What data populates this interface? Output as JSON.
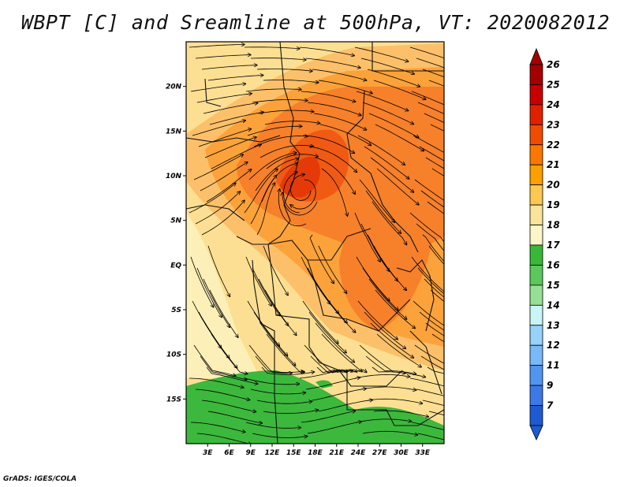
{
  "title": "WBPT [C] and Sreamline at 500hPa, VT: 2020082012",
  "footer": "GrADS: IGES/COLA",
  "map": {
    "lon_range": [
      0,
      36
    ],
    "lat_range": [
      -20,
      25
    ],
    "lat_ticks": [
      {
        "value": 20,
        "label": "20N"
      },
      {
        "value": 15,
        "label": "15N"
      },
      {
        "value": 10,
        "label": "10N"
      },
      {
        "value": 5,
        "label": "5N"
      },
      {
        "value": 0,
        "label": "EQ"
      },
      {
        "value": -5,
        "label": "5S"
      },
      {
        "value": -10,
        "label": "10S"
      },
      {
        "value": -15,
        "label": "15S"
      }
    ],
    "lon_ticks": [
      {
        "value": 3,
        "label": "3E"
      },
      {
        "value": 6,
        "label": "6E"
      },
      {
        "value": 9,
        "label": "9E"
      },
      {
        "value": 12,
        "label": "12E"
      },
      {
        "value": 15,
        "label": "15E"
      },
      {
        "value": 18,
        "label": "18E"
      },
      {
        "value": 21,
        "label": "21E"
      },
      {
        "value": 24,
        "label": "24E"
      },
      {
        "value": 27,
        "label": "27E"
      },
      {
        "value": 30,
        "label": "30E"
      },
      {
        "value": 33,
        "label": "33E"
      }
    ]
  },
  "colorbar": {
    "levels": [
      {
        "label": "26",
        "color": "#a50000"
      },
      {
        "label": "25",
        "color": "#c80000"
      },
      {
        "label": "24",
        "color": "#e12000"
      },
      {
        "label": "23",
        "color": "#f04b00"
      },
      {
        "label": "22",
        "color": "#fa7800"
      },
      {
        "label": "21",
        "color": "#fca000"
      },
      {
        "label": "20",
        "color": "#fcc850"
      },
      {
        "label": "19",
        "color": "#fae39a"
      },
      {
        "label": "18",
        "color": "#fcf5c8"
      },
      {
        "label": "17",
        "color": "#37b836"
      },
      {
        "label": "16",
        "color": "#5ac85a"
      },
      {
        "label": "15",
        "color": "#96e096"
      },
      {
        "label": "14",
        "color": "#c8f5f5"
      },
      {
        "label": "13",
        "color": "#96d2fa"
      },
      {
        "label": "12",
        "color": "#78b9fa"
      },
      {
        "label": "11",
        "color": "#5096f0"
      },
      {
        "label": "9",
        "color": "#3c78e6"
      },
      {
        "label": "7",
        "color": "#1e5ad2"
      }
    ],
    "top_color": "#a50000",
    "bottom_color": "#1e5ad2"
  }
}
